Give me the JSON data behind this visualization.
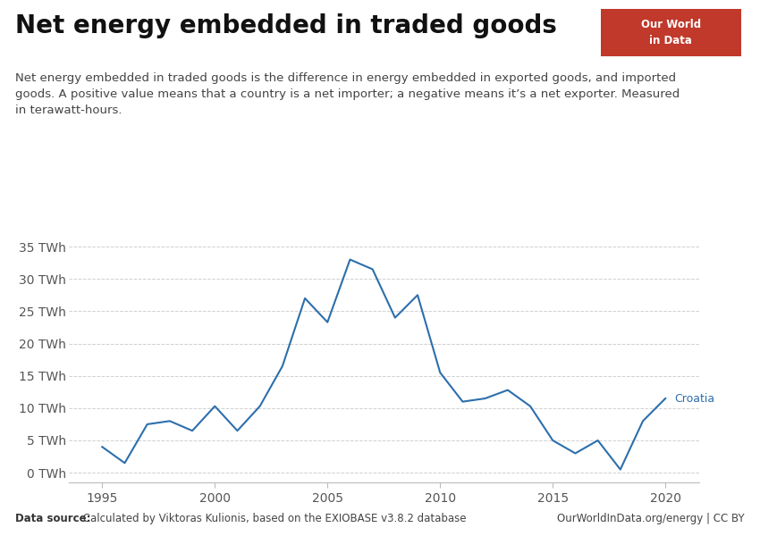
{
  "title": "Net energy embedded in traded goods",
  "subtitle": "Net energy embedded in traded goods is the difference in energy embedded in exported goods, and imported\ngoods. A positive value means that a country is a net importer; a negative means it’s a net exporter. Measured\nin terawatt-hours.",
  "years": [
    1995,
    1996,
    1997,
    1998,
    1999,
    2000,
    2001,
    2002,
    2003,
    2004,
    2005,
    2006,
    2007,
    2008,
    2009,
    2010,
    2011,
    2012,
    2013,
    2014,
    2015,
    2016,
    2017,
    2018,
    2019,
    2020
  ],
  "values": [
    4.0,
    1.5,
    7.5,
    8.0,
    6.5,
    10.3,
    6.5,
    10.3,
    16.5,
    27.0,
    23.3,
    33.0,
    31.5,
    24.0,
    27.5,
    15.5,
    11.0,
    11.5,
    12.8,
    10.3,
    5.0,
    3.0,
    5.0,
    0.5,
    8.0,
    11.5
  ],
  "line_color": "#2C6FAC",
  "label_color": "#2C6FAC",
  "series_label": "Croatia",
  "yticks": [
    0,
    5,
    10,
    15,
    20,
    25,
    30,
    35
  ],
  "ytick_labels": [
    "0 TWh",
    "5 TWh",
    "10 TWh",
    "15 TWh",
    "20 TWh",
    "25 TWh",
    "30 TWh",
    "35 TWh"
  ],
  "xlim": [
    1993.5,
    2021.5
  ],
  "ylim": [
    -1.5,
    37.5
  ],
  "xticks": [
    1995,
    2000,
    2005,
    2010,
    2015,
    2020
  ],
  "bg_color": "#ffffff",
  "grid_color": "#d0d0d0",
  "datasource_bold": "Data source:",
  "datasource_rest": " Calculated by Viktoras Kulionis, based on the EXIOBASE v3.8.2 database",
  "credit": "OurWorldInData.org/energy | CC BY",
  "owid_box_bg": "#C0392B",
  "owid_box_text": "Our World\nin Data",
  "title_fontsize": 20,
  "subtitle_fontsize": 9.5,
  "tick_fontsize": 10,
  "label_fontsize": 9
}
